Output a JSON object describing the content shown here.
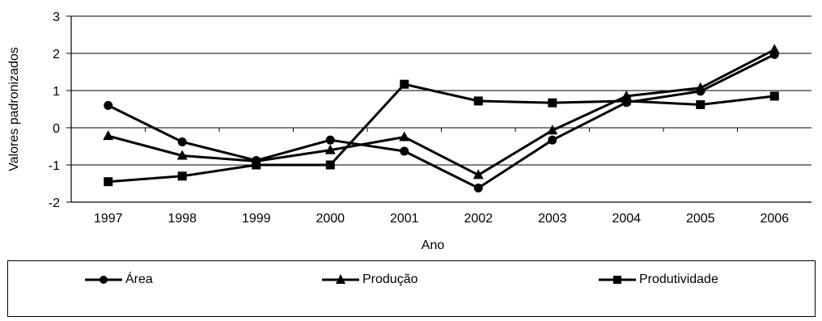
{
  "chart_data": {
    "type": "line",
    "title": "",
    "xlabel": "Ano",
    "ylabel": "Valores padronizados",
    "categories": [
      "1997",
      "1998",
      "1999",
      "2000",
      "2001",
      "2002",
      "2003",
      "2004",
      "2005",
      "2006"
    ],
    "ylim": [
      -2,
      3
    ],
    "yticks": [
      "3",
      "2",
      "1",
      "0",
      "-1",
      "-2"
    ],
    "grid": true,
    "legend_position": "bottom",
    "series": [
      {
        "name": "Área",
        "marker": "circle",
        "values": [
          0.6,
          -0.38,
          -0.88,
          -0.33,
          -0.63,
          -1.62,
          -0.33,
          0.68,
          0.98,
          1.97
        ]
      },
      {
        "name": "Produção",
        "marker": "triangle",
        "values": [
          -0.22,
          -0.75,
          -0.9,
          -0.6,
          -0.25,
          -1.27,
          -0.07,
          0.85,
          1.07,
          2.1
        ]
      },
      {
        "name": "Produtividade",
        "marker": "square",
        "values": [
          -1.45,
          -1.3,
          -1.0,
          -1.0,
          1.17,
          0.72,
          0.67,
          0.72,
          0.62,
          0.85
        ]
      }
    ],
    "line_color": "#000000"
  }
}
